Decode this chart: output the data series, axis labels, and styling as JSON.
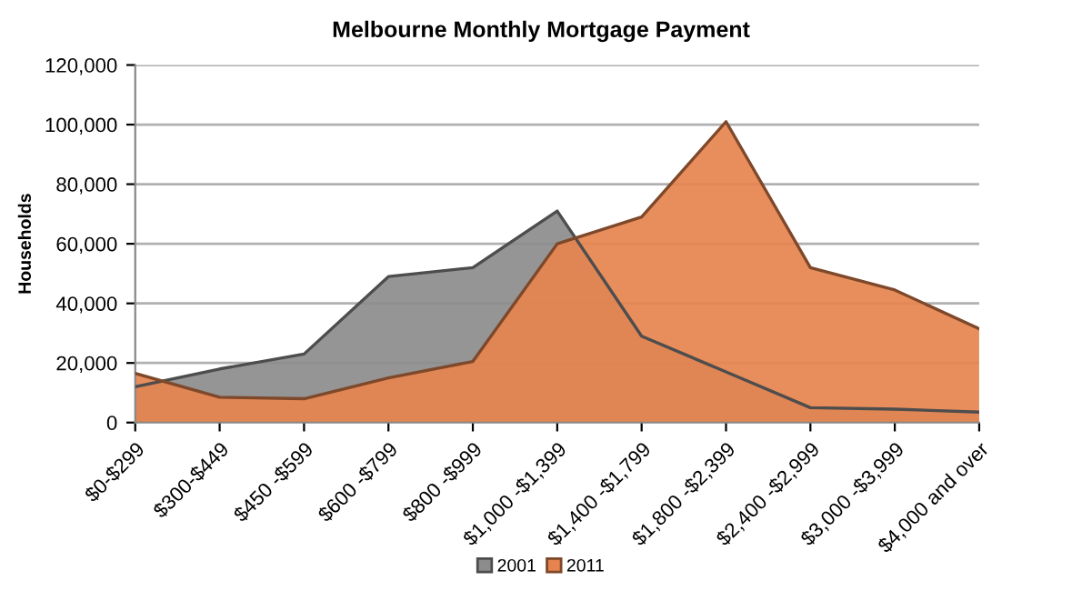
{
  "chart_data": {
    "type": "area",
    "title": "Melbourne Monthly Mortgage Payment",
    "ylabel": "Households",
    "categories": [
      "$0-$299",
      "$300-$449",
      "$450 -$599",
      "$600 -$799",
      "$800 -$999",
      "$1,000 -$1,399",
      "$1,400 -$1,799",
      "$1,800 -$2,399",
      "$2,400 -$2,999",
      "$3,000 -$3,999",
      "$4,000 and over"
    ],
    "series": [
      {
        "name": "2001",
        "color": "#8c8c8c",
        "values": [
          12000,
          18000,
          23000,
          49000,
          52000,
          71000,
          29000,
          17000,
          5000,
          4500,
          3500
        ]
      },
      {
        "name": "2011",
        "color": "#e6834e",
        "values": [
          16500,
          8500,
          8000,
          15000,
          20500,
          60000,
          69000,
          101000,
          52000,
          44500,
          31500
        ]
      }
    ],
    "ylim": [
      0,
      120000
    ],
    "yticks": [
      {
        "value": 0,
        "label": "0"
      },
      {
        "value": 20000,
        "label": "20,000"
      },
      {
        "value": 40000,
        "label": "40,000"
      },
      {
        "value": 60000,
        "label": "60,000"
      },
      {
        "value": 80000,
        "label": "80,000"
      },
      {
        "value": 100000,
        "label": "100,000"
      },
      {
        "value": 120000,
        "label": "120,000"
      }
    ],
    "grid": "y",
    "legend": "bottom"
  }
}
